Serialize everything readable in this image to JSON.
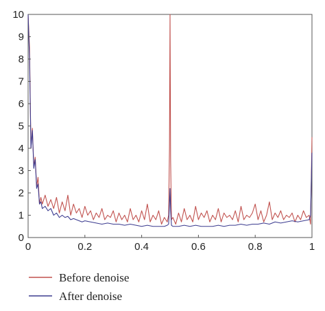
{
  "chart_data": {
    "type": "line",
    "title": "",
    "xlabel": "",
    "ylabel": "",
    "xlim": [
      0,
      1
    ],
    "ylim": [
      0,
      10
    ],
    "x_ticks": [
      "0",
      "0.2",
      "0.4",
      "0.6",
      "0.8",
      "1"
    ],
    "y_ticks": [
      "0",
      "1",
      "2",
      "3",
      "4",
      "5",
      "6",
      "7",
      "8",
      "9",
      "10"
    ],
    "grid": false,
    "legend_position": "bottom-left",
    "series": [
      {
        "name": "Before denoise",
        "color": "#c0504d",
        "x": [
          0.0,
          0.005,
          0.01,
          0.015,
          0.02,
          0.025,
          0.03,
          0.035,
          0.04,
          0.045,
          0.05,
          0.06,
          0.07,
          0.08,
          0.09,
          0.1,
          0.11,
          0.12,
          0.13,
          0.14,
          0.15,
          0.16,
          0.17,
          0.18,
          0.19,
          0.2,
          0.21,
          0.22,
          0.23,
          0.24,
          0.25,
          0.26,
          0.27,
          0.28,
          0.29,
          0.3,
          0.31,
          0.32,
          0.33,
          0.34,
          0.35,
          0.36,
          0.37,
          0.38,
          0.39,
          0.4,
          0.41,
          0.42,
          0.43,
          0.44,
          0.45,
          0.46,
          0.47,
          0.48,
          0.49,
          0.495,
          0.498,
          0.5,
          0.502,
          0.505,
          0.51,
          0.52,
          0.53,
          0.54,
          0.55,
          0.56,
          0.57,
          0.58,
          0.59,
          0.6,
          0.61,
          0.62,
          0.63,
          0.64,
          0.65,
          0.66,
          0.67,
          0.68,
          0.69,
          0.7,
          0.71,
          0.72,
          0.73,
          0.74,
          0.75,
          0.76,
          0.77,
          0.78,
          0.79,
          0.8,
          0.81,
          0.82,
          0.83,
          0.84,
          0.85,
          0.86,
          0.87,
          0.88,
          0.89,
          0.9,
          0.91,
          0.92,
          0.93,
          0.94,
          0.95,
          0.96,
          0.97,
          0.98,
          0.99,
          0.995,
          1.0
        ],
        "y": [
          10.0,
          8.5,
          4.0,
          4.9,
          3.2,
          3.6,
          2.3,
          2.7,
          1.5,
          1.8,
          1.5,
          1.9,
          1.4,
          1.7,
          1.3,
          1.8,
          1.1,
          1.6,
          1.2,
          1.9,
          1.0,
          1.5,
          1.1,
          1.3,
          0.9,
          1.4,
          1.0,
          1.2,
          0.8,
          1.1,
          0.9,
          1.3,
          0.8,
          1.0,
          0.9,
          1.2,
          0.7,
          1.1,
          0.8,
          1.0,
          0.7,
          1.3,
          0.8,
          1.0,
          0.7,
          1.2,
          0.8,
          1.5,
          0.7,
          1.0,
          0.8,
          1.2,
          0.6,
          0.9,
          0.7,
          1.0,
          4.0,
          10.0,
          3.5,
          0.8,
          0.9,
          0.6,
          1.1,
          0.7,
          1.3,
          0.8,
          1.0,
          0.7,
          1.4,
          0.8,
          1.1,
          0.9,
          1.2,
          0.7,
          1.0,
          0.8,
          1.3,
          0.7,
          1.1,
          0.9,
          1.0,
          0.8,
          1.2,
          0.7,
          1.4,
          0.8,
          1.0,
          0.9,
          1.1,
          1.5,
          0.8,
          1.2,
          0.7,
          1.0,
          1.6,
          0.8,
          1.1,
          0.9,
          1.2,
          0.8,
          1.0,
          0.9,
          1.1,
          0.7,
          1.0,
          0.8,
          1.2,
          0.9,
          1.0,
          0.6,
          4.5
        ]
      },
      {
        "name": "After denoise",
        "color": "#3b3b8f",
        "x": [
          0.0,
          0.005,
          0.01,
          0.015,
          0.02,
          0.025,
          0.03,
          0.035,
          0.04,
          0.045,
          0.05,
          0.06,
          0.07,
          0.08,
          0.09,
          0.1,
          0.11,
          0.12,
          0.13,
          0.14,
          0.15,
          0.16,
          0.17,
          0.18,
          0.19,
          0.2,
          0.22,
          0.24,
          0.26,
          0.28,
          0.3,
          0.32,
          0.34,
          0.36,
          0.38,
          0.4,
          0.42,
          0.44,
          0.46,
          0.48,
          0.49,
          0.495,
          0.498,
          0.5,
          0.502,
          0.505,
          0.51,
          0.53,
          0.55,
          0.57,
          0.59,
          0.61,
          0.63,
          0.65,
          0.67,
          0.69,
          0.71,
          0.73,
          0.75,
          0.77,
          0.79,
          0.81,
          0.83,
          0.85,
          0.87,
          0.89,
          0.91,
          0.93,
          0.95,
          0.97,
          0.99,
          0.995,
          1.0
        ],
        "y": [
          10.0,
          8.0,
          4.0,
          4.8,
          3.1,
          3.5,
          2.2,
          2.4,
          1.5,
          1.6,
          1.3,
          1.4,
          1.2,
          1.3,
          1.0,
          1.1,
          0.9,
          1.0,
          0.9,
          0.95,
          0.8,
          0.85,
          0.8,
          0.75,
          0.7,
          0.75,
          0.7,
          0.65,
          0.6,
          0.65,
          0.6,
          0.6,
          0.55,
          0.6,
          0.55,
          0.5,
          0.55,
          0.5,
          0.5,
          0.5,
          0.55,
          0.6,
          1.5,
          2.2,
          1.2,
          0.55,
          0.5,
          0.5,
          0.55,
          0.5,
          0.55,
          0.5,
          0.5,
          0.5,
          0.55,
          0.5,
          0.55,
          0.55,
          0.6,
          0.55,
          0.6,
          0.6,
          0.65,
          0.6,
          0.7,
          0.65,
          0.7,
          0.75,
          0.7,
          0.75,
          0.8,
          1.0,
          3.8
        ]
      }
    ]
  }
}
